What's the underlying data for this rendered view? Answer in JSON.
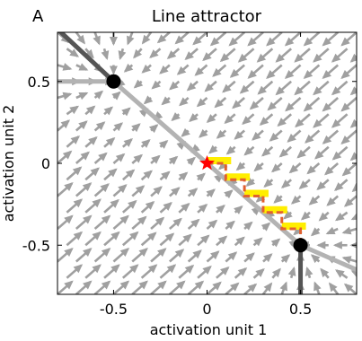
{
  "chart_data": {
    "type": "quiver",
    "panel_label": "A",
    "title": "Line attractor",
    "xlabel": "activation unit 1",
    "ylabel": "activation unit 2",
    "xlim": [
      -0.8,
      0.8
    ],
    "ylim": [
      -0.8,
      0.8
    ],
    "xticks": [
      -0.5,
      0,
      0.5
    ],
    "xtick_labels": [
      "-0.5",
      "0",
      "0.5"
    ],
    "yticks": [
      0.5,
      0,
      -0.5
    ],
    "ytick_labels": [
      "0.5",
      "0",
      "-0.5"
    ],
    "grid": false,
    "colors": {
      "arrows": "#a0a0a0",
      "attractor_line": "#b3b3b3",
      "side_segments": "#555555",
      "endpoints": "#000000",
      "start_marker": "#ff0000",
      "steps_yellow": "#ffee00",
      "steps_dashed": "#e06030"
    },
    "attractor_line": {
      "points": [
        [
          -0.8,
          0.5
        ],
        [
          -0.5,
          0.5
        ],
        [
          0.5,
          -0.5
        ],
        [
          0.8,
          -0.65
        ]
      ]
    },
    "side_segments": [
      {
        "points": [
          [
            -0.8,
            0.82
          ],
          [
            -0.5,
            0.5
          ]
        ]
      },
      {
        "points": [
          [
            0.5,
            -0.5
          ],
          [
            0.5,
            -0.82
          ]
        ]
      }
    ],
    "fixed_points": [
      [
        -0.5,
        0.5
      ],
      [
        0.5,
        -0.5
      ]
    ],
    "start_point": [
      0.0,
      0.0
    ],
    "staircase": [
      [
        0.0,
        0.0
      ],
      [
        0.1,
        0.0
      ],
      [
        0.1,
        -0.1
      ],
      [
        0.2,
        -0.1
      ],
      [
        0.2,
        -0.2
      ],
      [
        0.3,
        -0.2
      ],
      [
        0.3,
        -0.3
      ],
      [
        0.4,
        -0.3
      ],
      [
        0.4,
        -0.4
      ],
      [
        0.5,
        -0.4
      ],
      [
        0.5,
        -0.5
      ]
    ],
    "vector_field_grid": {
      "x": [
        -0.8,
        -0.7,
        -0.6,
        -0.5,
        -0.4,
        -0.3,
        -0.2,
        -0.1,
        0.0,
        0.1,
        0.2,
        0.3,
        0.4,
        0.5,
        0.6,
        0.7,
        0.8
      ],
      "y": [
        -0.8,
        -0.7,
        -0.6,
        -0.5,
        -0.4,
        -0.3,
        -0.2,
        -0.1,
        0.0,
        0.1,
        0.2,
        0.3,
        0.4,
        0.5,
        0.6,
        0.7,
        0.8
      ],
      "flow": "toward line x+y=0, clipped to segment between (-0.5,0.5) and (0.5,-0.5)"
    }
  }
}
